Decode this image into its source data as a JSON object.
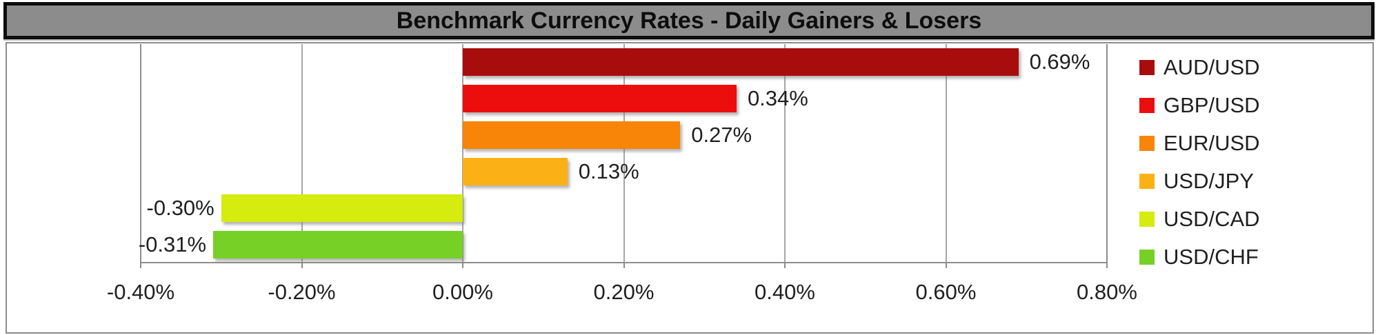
{
  "title": "Benchmark Currency Rates - Daily Gainers & Losers",
  "colors": {
    "title_bar_bg": "#8C8C8C",
    "title_bar_border": "#0D0D0D",
    "chart_area_border": "#8C8C8C",
    "gridline": "#A6A6A6",
    "axis_line": "#8C8C8C",
    "label_text": "#1F1F1F"
  },
  "chart_data": {
    "type": "bar",
    "orientation": "horizontal",
    "title": "Benchmark Currency Rates - Daily Gainers & Losers",
    "categories": [
      "AUD/USD",
      "GBP/USD",
      "EUR/USD",
      "USD/JPY",
      "USD/CAD",
      "USD/CHF"
    ],
    "values": [
      0.69,
      0.34,
      0.27,
      0.13,
      -0.3,
      -0.31
    ],
    "value_labels": [
      "0.69%",
      "0.34%",
      "0.27%",
      "0.13%",
      "-0.30%",
      "-0.31%"
    ],
    "bar_colors": [
      "#A80D0D",
      "#EC0D0D",
      "#F88408",
      "#FBB116",
      "#D6EB0E",
      "#77D026"
    ],
    "xlabel": "",
    "ylabel": "",
    "xlim": [
      -0.4,
      0.8
    ],
    "x_ticks": [
      -0.4,
      -0.2,
      0,
      0.2,
      0.4,
      0.6,
      0.8
    ],
    "x_tick_labels": [
      "-0.40%",
      "-0.20%",
      "0.00%",
      "0.20%",
      "0.40%",
      "0.60%",
      "0.80%"
    ],
    "grid": true,
    "legend_position": "right",
    "legend": [
      {
        "label": "AUD/USD",
        "color": "#A80D0D"
      },
      {
        "label": "GBP/USD",
        "color": "#EC0D0D"
      },
      {
        "label": "EUR/USD",
        "color": "#F88408"
      },
      {
        "label": "USD/JPY",
        "color": "#FBB116"
      },
      {
        "label": "USD/CAD",
        "color": "#D6EB0E"
      },
      {
        "label": "USD/CHF",
        "color": "#77D026"
      }
    ]
  }
}
